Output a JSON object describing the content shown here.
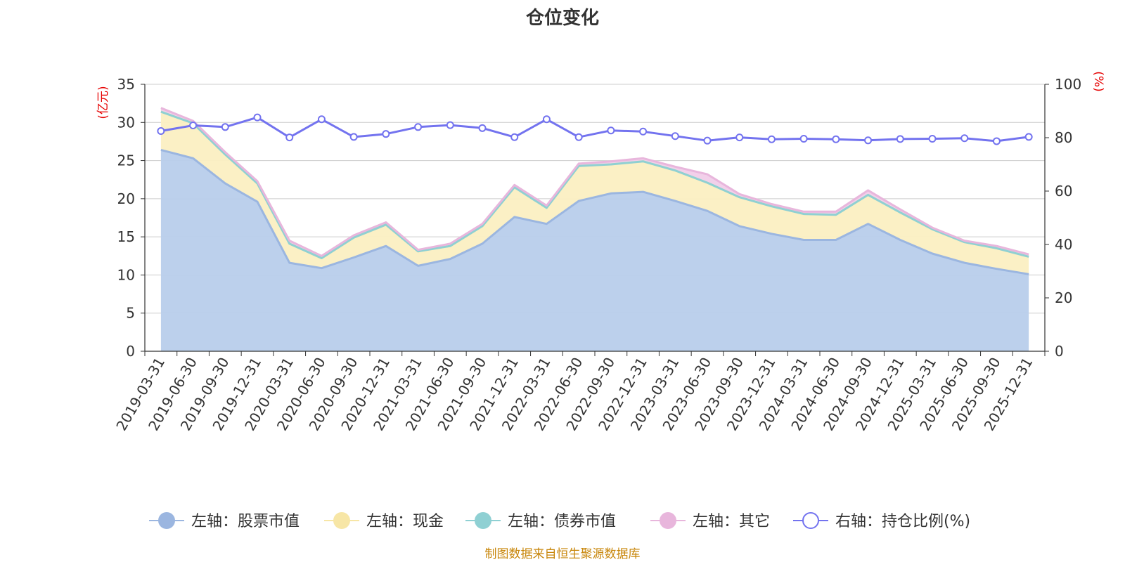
{
  "chart_data": {
    "type": "area",
    "title": "仓位变化",
    "left_unit": "(亿元)",
    "right_unit": "(%)",
    "source": "制图数据来自恒生聚源数据库",
    "left_axis": {
      "min": 0,
      "max": 35,
      "ticks": [
        0,
        5,
        10,
        15,
        20,
        25,
        30,
        35
      ]
    },
    "right_axis": {
      "min": 0,
      "max": 100,
      "ticks": [
        0,
        20,
        40,
        60,
        80,
        100
      ]
    },
    "grid": true,
    "legend_position": "bottom",
    "categories": [
      "2019-03-31",
      "2019-06-30",
      "2019-09-30",
      "2019-12-31",
      "2020-03-31",
      "2020-06-30",
      "2020-09-30",
      "2020-12-31",
      "2021-03-31",
      "2021-06-30",
      "2021-09-30",
      "2021-12-31",
      "2022-03-31",
      "2022-06-30",
      "2022-09-30",
      "2022-12-31",
      "2023-03-31",
      "2023-06-30",
      "2023-09-30",
      "2023-12-31",
      "2024-03-31",
      "2024-06-30",
      "2024-09-30",
      "2024-12-31",
      "2025-03-31",
      "2025-06-30",
      "2025-09-30",
      "2025-12-31"
    ],
    "series": [
      {
        "name": "左轴：股票市值",
        "axis": "left",
        "color": "#9bb6e0",
        "fill": "#b8cdeb",
        "values": [
          26.4,
          25.3,
          22.0,
          19.6,
          11.6,
          10.9,
          12.3,
          13.8,
          11.2,
          12.1,
          14.1,
          17.6,
          16.7,
          19.7,
          20.7,
          20.9,
          19.7,
          18.4,
          16.4,
          15.4,
          14.6,
          14.6,
          16.7,
          14.6,
          12.8,
          11.6,
          10.8,
          10.1
        ]
      },
      {
        "name": "左轴：现金",
        "axis": "left",
        "color": "#f7e6a6",
        "fill": "#fbefc2",
        "values": [
          5.0,
          4.6,
          3.8,
          2.4,
          2.5,
          1.3,
          2.6,
          2.8,
          1.9,
          1.7,
          2.3,
          3.9,
          2.1,
          4.6,
          3.8,
          4.0,
          4.0,
          3.7,
          3.8,
          3.6,
          3.4,
          3.3,
          3.8,
          3.6,
          3.2,
          2.7,
          2.7,
          2.3
        ]
      },
      {
        "name": "左轴：债券市值",
        "axis": "left",
        "color": "#8fd0d3",
        "fill": "#b5e0e2",
        "values": [
          0,
          0,
          0,
          0,
          0,
          0,
          0,
          0,
          0,
          0,
          0,
          0,
          0,
          0,
          0,
          0,
          0,
          0,
          0,
          0,
          0,
          0,
          0,
          0,
          0,
          0,
          0,
          0
        ]
      },
      {
        "name": "左轴：其它",
        "axis": "left",
        "color": "#e8b6dc",
        "fill": "#f1cde9",
        "values": [
          0.5,
          0.3,
          0.3,
          0.3,
          0.4,
          0.3,
          0.3,
          0.3,
          0.2,
          0.3,
          0.3,
          0.3,
          0.3,
          0.3,
          0.4,
          0.4,
          0.5,
          1.1,
          0.4,
          0.3,
          0.3,
          0.4,
          0.6,
          0.4,
          0.2,
          0.2,
          0.3,
          0.3
        ]
      },
      {
        "name": "右轴：持仓比例(%)",
        "axis": "right",
        "color": "#7373ef",
        "values": [
          82.5,
          84.6,
          84.0,
          87.6,
          80.1,
          86.9,
          80.3,
          81.4,
          84.0,
          84.7,
          83.6,
          80.2,
          86.9,
          80.2,
          82.7,
          82.3,
          80.6,
          78.9,
          80.1,
          79.4,
          79.6,
          79.4,
          79.0,
          79.5,
          79.6,
          79.8,
          78.7,
          80.3
        ]
      }
    ]
  }
}
